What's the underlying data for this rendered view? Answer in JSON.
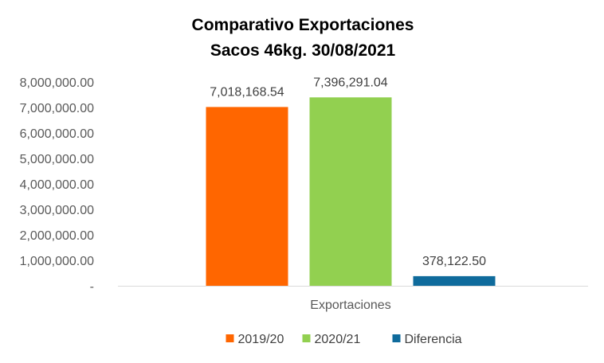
{
  "chart_data": {
    "type": "bar",
    "title_line1": "Comparativo  Exportaciones",
    "title_line2": "Sacos 46kg. 30/08/2021",
    "categories": [
      "Exportaciones"
    ],
    "series": [
      {
        "name": "2019/20",
        "values": [
          7018168.54
        ],
        "label": "7,018,168.54",
        "color": "#FF6600"
      },
      {
        "name": "2020/21",
        "values": [
          7396291.04
        ],
        "label": "7,396,291.04",
        "color": "#92D050"
      },
      {
        "name": "Diferencia",
        "values": [
          378122.5
        ],
        "label": "378,122.50",
        "color": "#0F6B9C"
      }
    ],
    "ylim": [
      0,
      8000000
    ],
    "yticks": [
      0,
      1000000,
      2000000,
      3000000,
      4000000,
      5000000,
      6000000,
      7000000,
      8000000
    ],
    "ytick_labels": [
      "-",
      "1,000,000.00",
      "2,000,000.00",
      "3,000,000.00",
      "4,000,000.00",
      "5,000,000.00",
      "6,000,000.00",
      "7,000,000.00",
      "8,000,000.00"
    ],
    "xlabel": "",
    "ylabel": "",
    "grid": false,
    "legend_position": "bottom"
  }
}
